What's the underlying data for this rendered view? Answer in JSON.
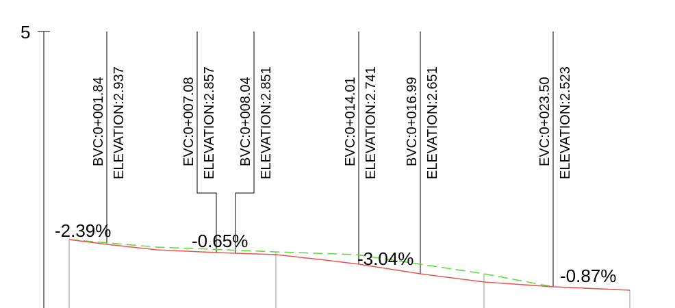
{
  "axis": {
    "top_tick_label": "5"
  },
  "station_labels": [
    {
      "station": "BVC:0+001.84",
      "elevation": "ELEVATION:2.937"
    },
    {
      "station": "EVC:0+007.08",
      "elevation": "ELEVATION:2.857"
    },
    {
      "station": "BVC:0+008.04",
      "elevation": "ELEVATION:2.851"
    },
    {
      "station": "EVC:0+014.01",
      "elevation": "ELEVATION:2.741"
    },
    {
      "station": "BVC:0+016.99",
      "elevation": "ELEVATION:2.651"
    },
    {
      "station": "EVC:0+023.50",
      "elevation": "ELEVATION:2.523"
    }
  ],
  "grades": [
    "-2.39%",
    "-0.65%",
    "-3.04%",
    "-0.87%"
  ],
  "colors": {
    "profile_line": "#f05050",
    "tangent_line": "#55dd33",
    "leader_lines": "#000000"
  }
}
